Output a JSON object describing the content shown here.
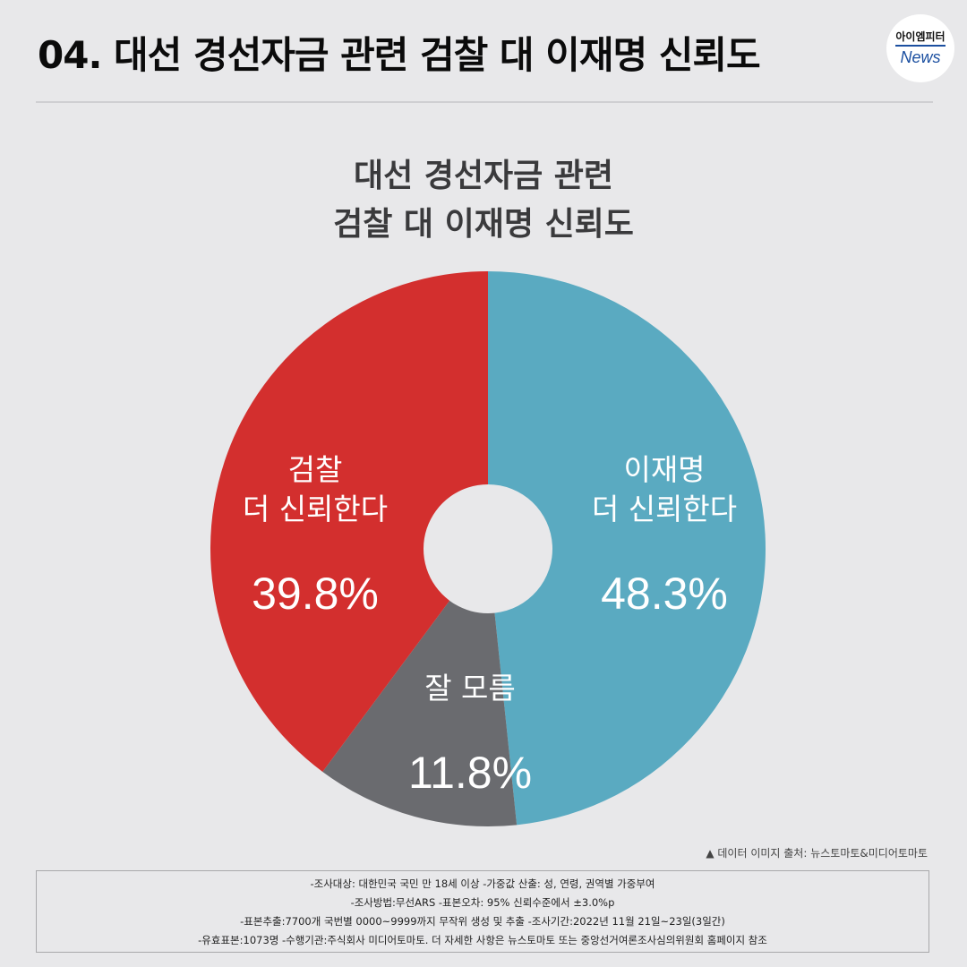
{
  "header": {
    "title": "04. 대선 경선자금 관련 검찰 대 이재명 신뢰도",
    "logo_top": "아이엠피터",
    "logo_bottom": "News"
  },
  "chart_data": {
    "type": "pie",
    "donut": true,
    "title_lines": [
      "대선 경선자금 관련",
      "검찰 대 이재명 신뢰도"
    ],
    "slices": [
      {
        "label_lines": [
          "이재명",
          "더 신뢰한다"
        ],
        "value": 48.3,
        "value_label": "48.3%",
        "color": "#5aaac1"
      },
      {
        "label_lines": [
          "잘 모름"
        ],
        "value": 11.8,
        "value_label": "11.8%",
        "color": "#6a6b6f"
      },
      {
        "label_lines": [
          "검찰",
          "더 신뢰한다"
        ],
        "value": 39.8,
        "value_label": "39.8%",
        "color": "#d32f2e"
      }
    ],
    "start": "top, clockwise"
  },
  "source_note": "▲ 데이터 이미지 출처: 뉴스토마토&미디어토마토",
  "notes": [
    "-조사대상: 대한민국 국민 만 18세 이상  -가중값 산출: 성, 연령, 권역별 가중부여",
    "-조사방법:무선ARS -표본오차: 95% 신뢰수준에서 ±3.0%p",
    "-표본추출:7700개 국번별 0000~9999까지 무작위 생성 및 추출 -조사기간:2022년 11월 21일~23일(3일간)",
    "-유효표본:1073명 -수행기관:주식회사 미디어토마토. 더 자세한 사항은 뉴스토마토 또는 중앙선거여론조사심의위원회 홈페이지 참조"
  ]
}
